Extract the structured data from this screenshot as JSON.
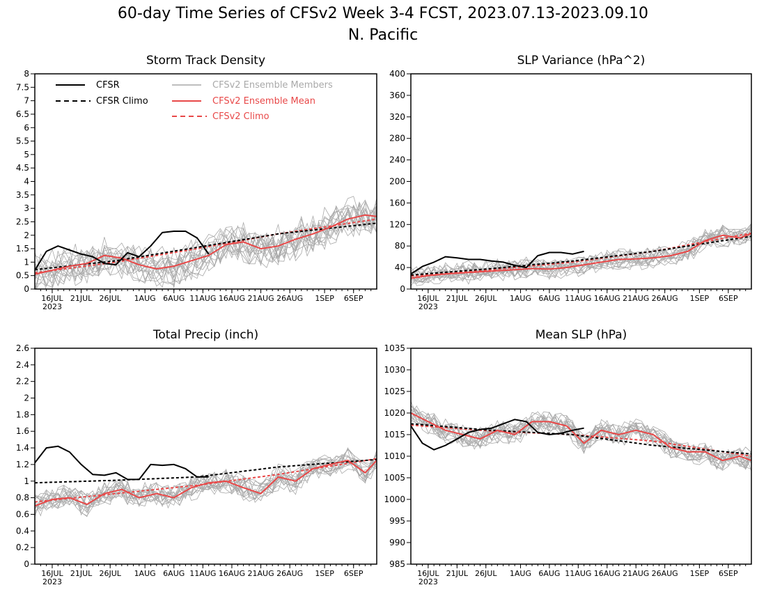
{
  "figure": {
    "title_line1": "60-day Time Series of CFSv2 Week 3-4 FCST, 2023.07.13-2023.09.10",
    "title_line2": "N. Pacific"
  },
  "colors": {
    "cfsr": "#000000",
    "ensemble_members": "#a9a9a9",
    "ensemble_mean": "#e84848",
    "cfsv2_climo": "#e84848"
  },
  "legend": {
    "cfsr": "CFSR",
    "cfsr_climo": "CFSR Climo",
    "members": "CFSv2 Ensemble Members",
    "mean": "CFSv2 Ensemble Mean",
    "climo": "CFSv2 Climo"
  },
  "chart_data": [
    {
      "type": "line",
      "title": "Storm Track Density",
      "ylim": [
        0,
        8
      ],
      "yticks": [
        0,
        0.5,
        1,
        1.5,
        2,
        2.5,
        3,
        3.5,
        4,
        4.5,
        5,
        5.5,
        6,
        6.5,
        7,
        7.5,
        8
      ],
      "ytick_labels": [
        "0",
        "0.5",
        "1",
        "1.5",
        "2",
        "2.5",
        "3",
        "3.5",
        "4",
        "4.5",
        "5",
        "5.5",
        "6",
        "6.5",
        "7",
        "7.5",
        "8"
      ],
      "xlim": [
        "2023-07-13",
        "2023-09-10"
      ],
      "xtick_dates": [
        "2023-07-16",
        "2023-07-21",
        "2023-07-26",
        "2023-08-01",
        "2023-08-06",
        "2023-08-11",
        "2023-08-16",
        "2023-08-21",
        "2023-08-26",
        "2023-09-01",
        "2023-09-06"
      ],
      "xtick_labels": [
        "16JUL",
        "21JUL",
        "26JUL",
        "1AUG",
        "6AUG",
        "11AUG",
        "16AUG",
        "21AUG",
        "26AUG",
        "1SEP",
        "6SEP"
      ],
      "year_label": "2023",
      "grid": false,
      "legend_position": "top-left",
      "ensemble_spread": 0.6,
      "series": [
        {
          "name": "CFSR",
          "style": "solid",
          "color": "#000000",
          "x": [
            "2023-07-13",
            "2023-07-15",
            "2023-07-17",
            "2023-07-19",
            "2023-07-21",
            "2023-07-23",
            "2023-07-25",
            "2023-07-27",
            "2023-07-29",
            "2023-07-31",
            "2023-08-02",
            "2023-08-04",
            "2023-08-06",
            "2023-08-08",
            "2023-08-10",
            "2023-08-12"
          ],
          "y": [
            0.7,
            1.4,
            1.6,
            1.45,
            1.3,
            1.2,
            0.95,
            0.9,
            1.35,
            1.2,
            1.6,
            2.1,
            2.15,
            2.15,
            1.9,
            1.3
          ]
        },
        {
          "name": "CFSR Climo",
          "style": "dashed",
          "color": "#000000",
          "x": [
            "2023-07-13",
            "2023-07-27",
            "2023-08-10",
            "2023-08-24",
            "2023-09-10"
          ],
          "y": [
            0.72,
            1.05,
            1.55,
            2.05,
            2.45
          ]
        },
        {
          "name": "CFSv2 Ensemble Mean",
          "style": "solid",
          "color": "#e84848",
          "x": [
            "2023-07-13",
            "2023-07-16",
            "2023-07-19",
            "2023-07-22",
            "2023-07-25",
            "2023-07-28",
            "2023-07-31",
            "2023-08-03",
            "2023-08-06",
            "2023-08-09",
            "2023-08-12",
            "2023-08-15",
            "2023-08-18",
            "2023-08-21",
            "2023-08-24",
            "2023-08-27",
            "2023-08-30",
            "2023-09-02",
            "2023-09-05",
            "2023-09-08",
            "2023-09-10"
          ],
          "y": [
            0.55,
            0.7,
            0.85,
            0.95,
            1.25,
            1.15,
            0.9,
            0.75,
            0.85,
            1.05,
            1.25,
            1.65,
            1.75,
            1.5,
            1.6,
            1.85,
            2.05,
            2.3,
            2.6,
            2.75,
            2.7
          ]
        },
        {
          "name": "CFSv2 Climo",
          "style": "dashed",
          "color": "#e84848",
          "x": [
            "2023-07-13",
            "2023-07-27",
            "2023-08-10",
            "2023-08-24",
            "2023-09-10"
          ],
          "y": [
            0.6,
            1.0,
            1.5,
            2.05,
            2.6
          ]
        }
      ]
    },
    {
      "type": "line",
      "title": "SLP Variance (hPa^2)",
      "ylim": [
        0,
        400
      ],
      "yticks": [
        0,
        40,
        80,
        120,
        160,
        200,
        240,
        280,
        320,
        360,
        400
      ],
      "ytick_labels": [
        "0",
        "40",
        "80",
        "120",
        "160",
        "200",
        "240",
        "280",
        "320",
        "360",
        "400"
      ],
      "xlim": [
        "2023-07-13",
        "2023-09-10"
      ],
      "xtick_dates": [
        "2023-07-16",
        "2023-07-21",
        "2023-07-26",
        "2023-08-01",
        "2023-08-06",
        "2023-08-11",
        "2023-08-16",
        "2023-08-21",
        "2023-08-26",
        "2023-09-01",
        "2023-09-06"
      ],
      "xtick_labels": [
        "16JUL",
        "21JUL",
        "26JUL",
        "1AUG",
        "6AUG",
        "11AUG",
        "16AUG",
        "21AUG",
        "26AUG",
        "1SEP",
        "6SEP"
      ],
      "year_label": "2023",
      "grid": false,
      "ensemble_spread": 16,
      "series": [
        {
          "name": "CFSR",
          "style": "solid",
          "color": "#000000",
          "x": [
            "2023-07-13",
            "2023-07-15",
            "2023-07-17",
            "2023-07-19",
            "2023-07-21",
            "2023-07-23",
            "2023-07-25",
            "2023-07-27",
            "2023-07-29",
            "2023-07-31",
            "2023-08-02",
            "2023-08-04",
            "2023-08-06",
            "2023-08-08",
            "2023-08-10",
            "2023-08-12"
          ],
          "y": [
            28,
            42,
            50,
            60,
            58,
            55,
            55,
            52,
            50,
            44,
            40,
            62,
            68,
            68,
            65,
            70
          ]
        },
        {
          "name": "CFSR Climo",
          "style": "dashed",
          "color": "#000000",
          "x": [
            "2023-07-13",
            "2023-07-27",
            "2023-08-10",
            "2023-08-24",
            "2023-09-10"
          ],
          "y": [
            26,
            38,
            52,
            70,
            98
          ]
        },
        {
          "name": "CFSv2 Ensemble Mean",
          "style": "solid",
          "color": "#e84848",
          "x": [
            "2023-07-13",
            "2023-07-16",
            "2023-07-19",
            "2023-07-22",
            "2023-07-25",
            "2023-07-28",
            "2023-07-31",
            "2023-08-03",
            "2023-08-06",
            "2023-08-09",
            "2023-08-12",
            "2023-08-15",
            "2023-08-18",
            "2023-08-21",
            "2023-08-24",
            "2023-08-27",
            "2023-08-30",
            "2023-09-02",
            "2023-09-05",
            "2023-09-08",
            "2023-09-10"
          ],
          "y": [
            20,
            25,
            28,
            30,
            32,
            34,
            36,
            38,
            37,
            40,
            45,
            50,
            55,
            56,
            58,
            62,
            70,
            90,
            100,
            95,
            103
          ]
        },
        {
          "name": "CFSv2 Climo",
          "style": "dashed",
          "color": "#e84848",
          "x": [
            "2023-07-13",
            "2023-07-27",
            "2023-08-10",
            "2023-08-24",
            "2023-09-10"
          ],
          "y": [
            24,
            36,
            50,
            70,
            104
          ]
        }
      ]
    },
    {
      "type": "line",
      "title": "Total Precip (inch)",
      "ylim": [
        0,
        2.6
      ],
      "yticks": [
        0,
        0.2,
        0.4,
        0.6,
        0.8,
        1,
        1.2,
        1.4,
        1.6,
        1.8,
        2,
        2.2,
        2.4,
        2.6
      ],
      "ytick_labels": [
        "0",
        "0.2",
        "0.4",
        "0.6",
        "0.8",
        "1",
        "1.2",
        "1.4",
        "1.6",
        "1.8",
        "2",
        "2.2",
        "2.4",
        "2.6"
      ],
      "xlim": [
        "2023-07-13",
        "2023-09-10"
      ],
      "xtick_dates": [
        "2023-07-16",
        "2023-07-21",
        "2023-07-26",
        "2023-08-01",
        "2023-08-06",
        "2023-08-11",
        "2023-08-16",
        "2023-08-21",
        "2023-08-26",
        "2023-09-01",
        "2023-09-06"
      ],
      "xtick_labels": [
        "16JUL",
        "21JUL",
        "26JUL",
        "1AUG",
        "6AUG",
        "11AUG",
        "16AUG",
        "21AUG",
        "26AUG",
        "1SEP",
        "6SEP"
      ],
      "year_label": "2023",
      "grid": false,
      "ensemble_spread": 0.12,
      "series": [
        {
          "name": "CFSR",
          "style": "solid",
          "color": "#000000",
          "x": [
            "2023-07-13",
            "2023-07-15",
            "2023-07-17",
            "2023-07-19",
            "2023-07-21",
            "2023-07-23",
            "2023-07-25",
            "2023-07-27",
            "2023-07-29",
            "2023-07-31",
            "2023-08-02",
            "2023-08-04",
            "2023-08-06",
            "2023-08-08",
            "2023-08-10",
            "2023-08-12"
          ],
          "y": [
            1.22,
            1.4,
            1.42,
            1.35,
            1.2,
            1.08,
            1.07,
            1.1,
            1.02,
            1.02,
            1.2,
            1.19,
            1.2,
            1.15,
            1.05,
            1.05
          ]
        },
        {
          "name": "CFSR Climo",
          "style": "dashed",
          "color": "#000000",
          "x": [
            "2023-07-13",
            "2023-07-27",
            "2023-08-10",
            "2023-08-24",
            "2023-09-10"
          ],
          "y": [
            0.98,
            1.01,
            1.05,
            1.17,
            1.26
          ]
        },
        {
          "name": "CFSv2 Ensemble Mean",
          "style": "solid",
          "color": "#e84848",
          "x": [
            "2023-07-13",
            "2023-07-16",
            "2023-07-19",
            "2023-07-22",
            "2023-07-25",
            "2023-07-28",
            "2023-07-31",
            "2023-08-03",
            "2023-08-06",
            "2023-08-09",
            "2023-08-12",
            "2023-08-15",
            "2023-08-18",
            "2023-08-21",
            "2023-08-24",
            "2023-08-27",
            "2023-08-30",
            "2023-09-02",
            "2023-09-05",
            "2023-09-08",
            "2023-09-10"
          ],
          "y": [
            0.7,
            0.78,
            0.8,
            0.72,
            0.85,
            0.9,
            0.8,
            0.85,
            0.8,
            0.92,
            0.98,
            1.0,
            0.92,
            0.85,
            1.05,
            1.0,
            1.15,
            1.2,
            1.25,
            1.1,
            1.25
          ]
        },
        {
          "name": "CFSv2 Climo",
          "style": "dashed",
          "color": "#e84848",
          "x": [
            "2023-07-13",
            "2023-07-27",
            "2023-08-10",
            "2023-08-24",
            "2023-09-10"
          ],
          "y": [
            0.75,
            0.85,
            0.95,
            1.08,
            1.27
          ]
        }
      ]
    },
    {
      "type": "line",
      "title": "Mean SLP (hPa)",
      "ylim": [
        985,
        1035
      ],
      "yticks": [
        985,
        990,
        995,
        1000,
        1005,
        1010,
        1015,
        1020,
        1025,
        1030,
        1035
      ],
      "ytick_labels": [
        "985",
        "990",
        "995",
        "1000",
        "1005",
        "1010",
        "1015",
        "1020",
        "1025",
        "1030",
        "1035"
      ],
      "xlim": [
        "2023-07-13",
        "2023-09-10"
      ],
      "xtick_dates": [
        "2023-07-16",
        "2023-07-21",
        "2023-07-26",
        "2023-08-01",
        "2023-08-06",
        "2023-08-11",
        "2023-08-16",
        "2023-08-21",
        "2023-08-26",
        "2023-09-01",
        "2023-09-06"
      ],
      "xtick_labels": [
        "16JUL",
        "21JUL",
        "26JUL",
        "1AUG",
        "6AUG",
        "11AUG",
        "16AUG",
        "21AUG",
        "26AUG",
        "1SEP",
        "6SEP"
      ],
      "year_label": "2023",
      "grid": false,
      "ensemble_spread": 2.2,
      "series": [
        {
          "name": "CFSR",
          "style": "solid",
          "color": "#000000",
          "x": [
            "2023-07-13",
            "2023-07-15",
            "2023-07-17",
            "2023-07-19",
            "2023-07-21",
            "2023-07-23",
            "2023-07-25",
            "2023-07-27",
            "2023-07-29",
            "2023-07-31",
            "2023-08-02",
            "2023-08-04",
            "2023-08-06",
            "2023-08-08",
            "2023-08-10",
            "2023-08-12"
          ],
          "y": [
            1017,
            1013,
            1011.5,
            1012.5,
            1014,
            1015.5,
            1016.2,
            1016.5,
            1017.5,
            1018.5,
            1018,
            1015.5,
            1015,
            1015.3,
            1016,
            1016.5
          ]
        },
        {
          "name": "CFSR Climo",
          "style": "dashed",
          "color": "#000000",
          "x": [
            "2023-07-13",
            "2023-07-27",
            "2023-08-10",
            "2023-08-24",
            "2023-09-10"
          ],
          "y": [
            1017.5,
            1016,
            1015,
            1012.5,
            1010.5
          ]
        },
        {
          "name": "CFSv2 Ensemble Mean",
          "style": "solid",
          "color": "#e84848",
          "x": [
            "2023-07-13",
            "2023-07-16",
            "2023-07-19",
            "2023-07-22",
            "2023-07-25",
            "2023-07-28",
            "2023-07-31",
            "2023-08-03",
            "2023-08-06",
            "2023-08-09",
            "2023-08-12",
            "2023-08-15",
            "2023-08-18",
            "2023-08-21",
            "2023-08-24",
            "2023-08-27",
            "2023-08-30",
            "2023-09-02",
            "2023-09-05",
            "2023-09-08",
            "2023-09-10"
          ],
          "y": [
            1020,
            1018,
            1016,
            1015,
            1014,
            1016,
            1015,
            1018,
            1018,
            1017,
            1013,
            1016,
            1015,
            1016,
            1015,
            1012,
            1011,
            1011,
            1009,
            1010,
            1009
          ]
        },
        {
          "name": "CFSv2 Climo",
          "style": "dashed",
          "color": "#e84848",
          "x": [
            "2023-07-13",
            "2023-07-27",
            "2023-08-10",
            "2023-08-24",
            "2023-09-10"
          ],
          "y": [
            1017.2,
            1015.8,
            1015,
            1013.5,
            1010
          ]
        }
      ]
    }
  ]
}
